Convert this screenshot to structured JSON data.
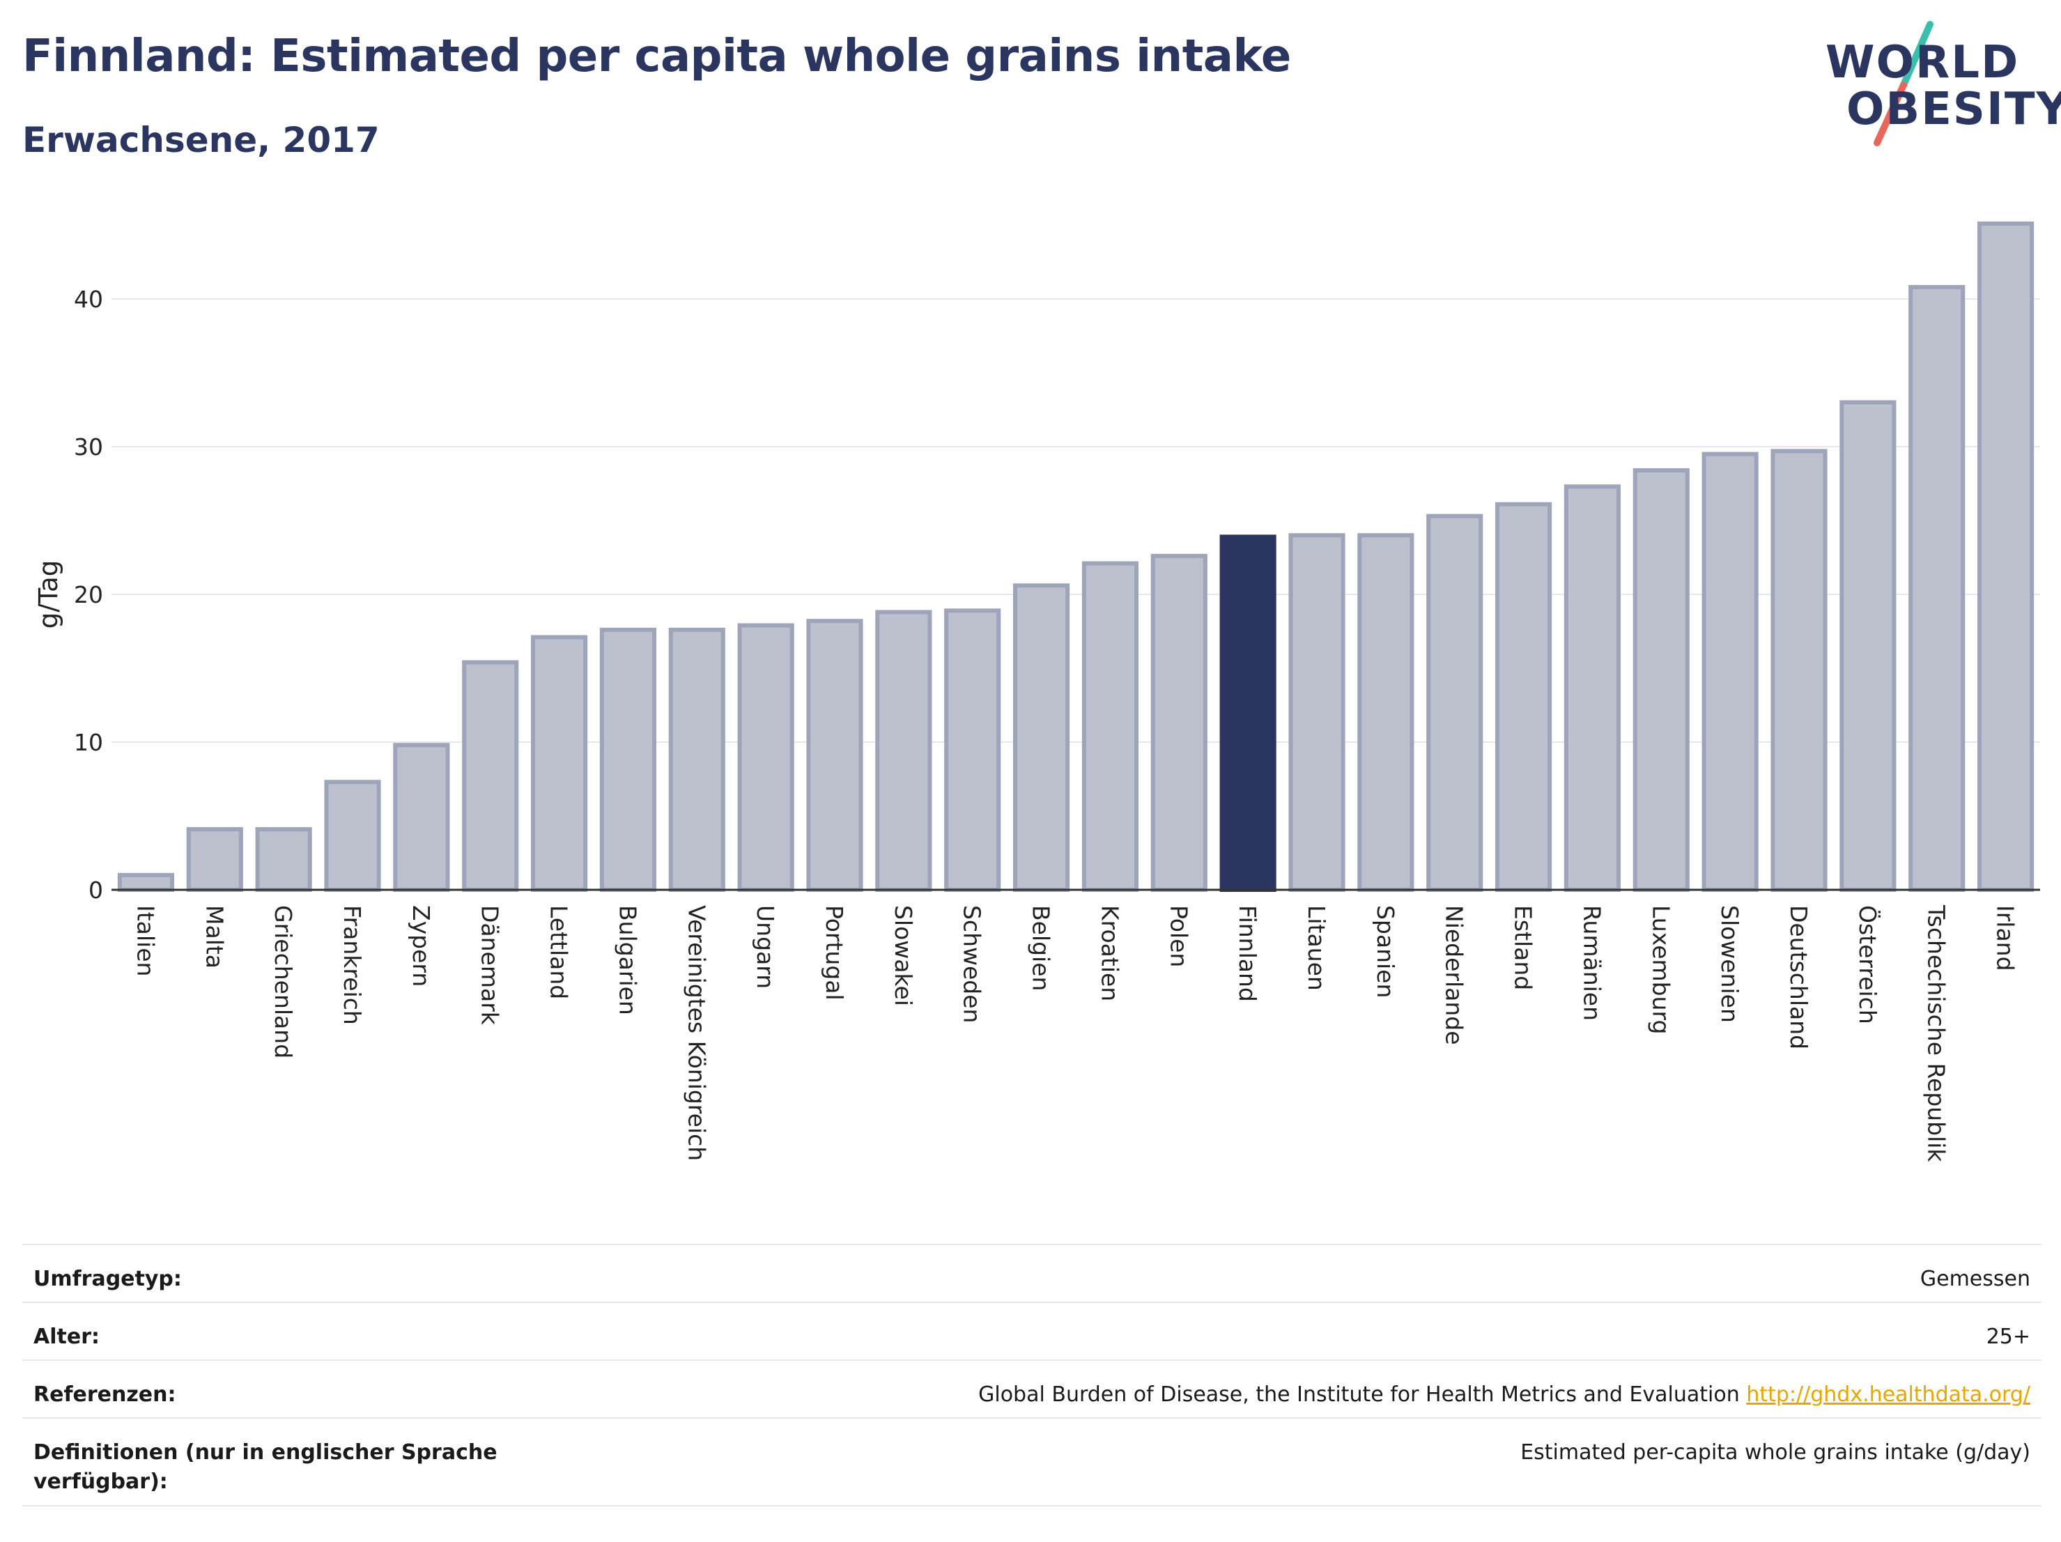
{
  "header": {
    "title": "Finnland: Estimated per capita whole grains intake",
    "subtitle": "Erwachsene, 2017"
  },
  "logo": {
    "line1": "WORLD",
    "line2": "OBESITY",
    "slash_colors": [
      "#3bbfad",
      "#e8665b"
    ]
  },
  "colors": {
    "bar": "#bdc1ce",
    "bar_edge": "#9ea4b9",
    "highlight": "#2a3560",
    "grid": "#e6e8ee",
    "text": "#2a3560"
  },
  "chart_data": {
    "type": "bar",
    "ylabel": "g/Tag",
    "xlabel": "",
    "ylim": [
      0,
      47
    ],
    "yticks": [
      0,
      10,
      20,
      30,
      40
    ],
    "grid": true,
    "highlight": "Finnland",
    "categories": [
      "Italien",
      "Malta",
      "Griechenland",
      "Frankreich",
      "Zypern",
      "Dänemark",
      "Lettland",
      "Bulgarien",
      "Vereinigtes Königreich",
      "Ungarn",
      "Portugal",
      "Slowakei",
      "Schweden",
      "Belgien",
      "Kroatien",
      "Polen",
      "Finnland",
      "Litauen",
      "Spanien",
      "Niederlande",
      "Estland",
      "Rumänien",
      "Luxemburg",
      "Slowenien",
      "Deutschland",
      "Österreich",
      "Tschechische Republik",
      "Irland"
    ],
    "values": [
      1.0,
      4.1,
      4.1,
      7.3,
      9.8,
      15.4,
      17.1,
      17.6,
      17.6,
      17.9,
      18.2,
      18.8,
      18.9,
      20.6,
      22.1,
      22.6,
      23.9,
      24.0,
      24.0,
      25.3,
      26.1,
      27.3,
      28.4,
      29.5,
      29.7,
      33.0,
      40.8,
      45.1
    ]
  },
  "info": {
    "survey_label": "Umfragetyp:",
    "survey_value": "Gemessen",
    "age_label": "Alter:",
    "age_value": "25+",
    "refs_label": "Referenzen:",
    "refs_value": "Global Burden of Disease, the Institute for Health Metrics and Evaluation",
    "refs_link": "http://ghdx.healthdata.org/",
    "defs_label": "Definitionen (nur in englischer Sprache verfügbar):",
    "defs_value": "Estimated per-capita whole grains intake (g/day)"
  }
}
